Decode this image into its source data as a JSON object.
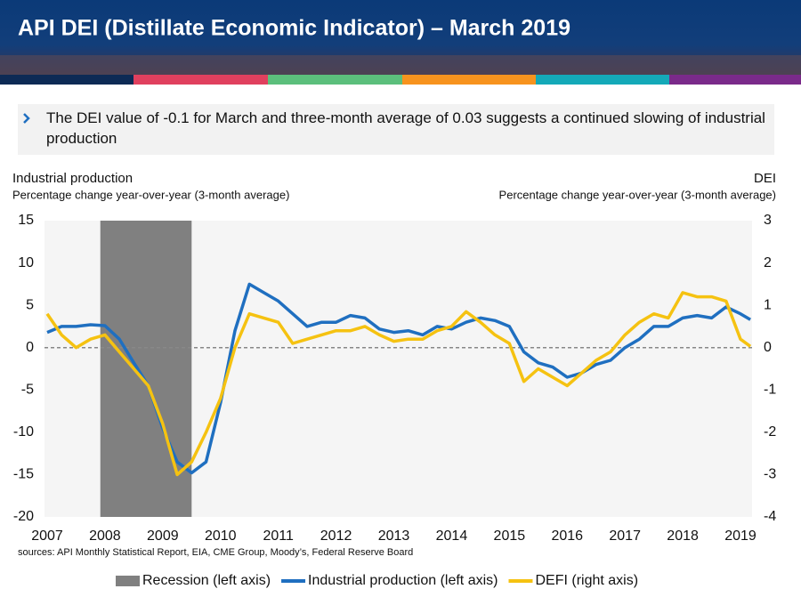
{
  "header": {
    "title": "API DEI (Distillate Economic Indicator) – March 2019"
  },
  "bullet": "The DEI value of -0.1 for March and three-month average of 0.03 suggests a continued slowing of industrial production",
  "chart_data": {
    "type": "line",
    "y_label": "Industrial production",
    "y_sublabel": "Percentage change year-over-year (3-month average)",
    "y2_label": "DEI",
    "y2_sublabel": "Percentage change year-over-year (3-month average)",
    "source": "sources: API Monthly Statistical Report, EIA, CME Group, Moody’s, Federal Reserve Board",
    "xlim": [
      2007,
      2019.2
    ],
    "xticks": [
      2007,
      2008,
      2009,
      2010,
      2011,
      2012,
      2013,
      2014,
      2015,
      2016,
      2017,
      2018,
      2019
    ],
    "ylim": [
      -20,
      15
    ],
    "yticks": [
      -20,
      -15,
      -10,
      -5,
      0,
      5,
      10,
      15
    ],
    "y2lim": [
      -4,
      3
    ],
    "y2ticks": [
      -4,
      -3,
      -2,
      -1,
      0,
      1,
      2,
      3
    ],
    "hline": 0,
    "recession": {
      "name": "Recession (left axis)",
      "color": "#808080",
      "x": [
        2007.92,
        2009.5
      ]
    },
    "x": [
      2007,
      2007.25,
      2007.5,
      2007.75,
      2008,
      2008.25,
      2008.5,
      2008.75,
      2009,
      2009.25,
      2009.5,
      2009.75,
      2010,
      2010.25,
      2010.5,
      2010.75,
      2011,
      2011.25,
      2011.5,
      2011.75,
      2012,
      2012.25,
      2012.5,
      2012.75,
      2013,
      2013.25,
      2013.5,
      2013.75,
      2014,
      2014.25,
      2014.5,
      2014.75,
      2015,
      2015.25,
      2015.5,
      2015.75,
      2016,
      2016.25,
      2016.5,
      2016.75,
      2017,
      2017.25,
      2017.5,
      2017.75,
      2018,
      2018.25,
      2018.5,
      2018.75,
      2019,
      2019.17
    ],
    "series": [
      {
        "name": "Industrial production (left axis)",
        "color": "#1f6fc0",
        "values": [
          1.8,
          2.5,
          2.5,
          2.7,
          2.6,
          1.0,
          -1.8,
          -4.5,
          -9.5,
          -13.5,
          -14.8,
          -13.5,
          -6.5,
          2.0,
          7.5,
          6.5,
          5.5,
          4.0,
          2.5,
          3.0,
          3.0,
          3.8,
          3.5,
          2.2,
          1.8,
          2.0,
          1.5,
          2.5,
          2.2,
          3.0,
          3.5,
          3.2,
          2.5,
          -0.5,
          -1.8,
          -2.3,
          -3.5,
          -3.0,
          -2.0,
          -1.5,
          0.0,
          1.0,
          2.5,
          2.5,
          3.5,
          3.8,
          3.5,
          4.8,
          4.0,
          3.3
        ]
      },
      {
        "name": "DEFI (right axis)",
        "color": "#f5c211",
        "axis": "y2",
        "values": [
          0.8,
          0.3,
          0.0,
          0.2,
          0.3,
          -0.1,
          -0.5,
          -0.9,
          -1.8,
          -3.0,
          -2.7,
          -2.0,
          -1.2,
          0.0,
          0.8,
          0.7,
          0.6,
          0.1,
          0.2,
          0.3,
          0.4,
          0.4,
          0.5,
          0.3,
          0.15,
          0.2,
          0.2,
          0.4,
          0.5,
          0.85,
          0.6,
          0.3,
          0.1,
          -0.8,
          -0.5,
          -0.7,
          -0.9,
          -0.6,
          -0.3,
          -0.1,
          0.3,
          0.6,
          0.8,
          0.7,
          1.3,
          1.2,
          1.2,
          1.1,
          0.2,
          0.03
        ]
      }
    ]
  }
}
